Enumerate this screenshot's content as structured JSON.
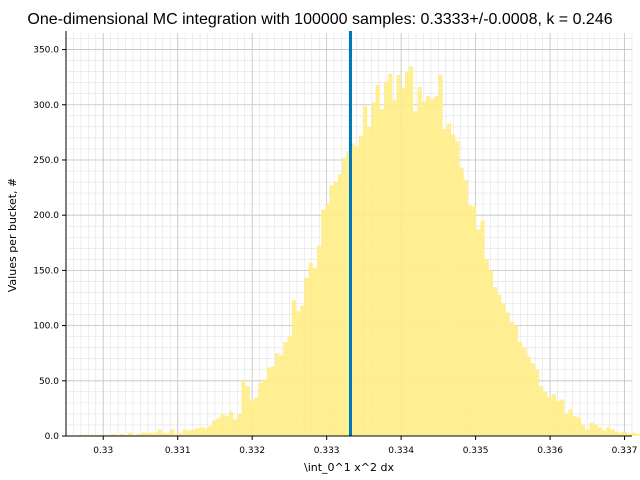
{
  "chart_data": {
    "type": "bar",
    "title": "One-dimensional MC integration with 100000 samples: 0.3333+/-0.0008, k = 0.246",
    "xlabel": "\\int_0^1 x^2 dx",
    "ylabel": "Values per bucket, #",
    "xlim": [
      0.3295,
      0.3371
    ],
    "ylim": [
      0,
      365
    ],
    "x_ticks": [
      0.33,
      0.331,
      0.332,
      0.333,
      0.334,
      0.335,
      0.336,
      0.337
    ],
    "x_tick_labels": [
      "0.33",
      "0.331",
      "0.332",
      "0.333",
      "0.334",
      "0.335",
      "0.336",
      "0.337"
    ],
    "y_ticks": [
      0,
      50,
      100,
      150,
      200,
      250,
      300,
      350
    ],
    "y_tick_labels": [
      "0.0",
      "50.0",
      "100.0",
      "150.0",
      "200.0",
      "250.0",
      "300.0",
      "350.0"
    ],
    "grid": true,
    "bar_color": "#ffee88",
    "mean_line": {
      "x": 0.33332,
      "color": "#0077bb"
    },
    "bin_start": 0.32966,
    "bin_width": 5.63e-05,
    "values": [
      1,
      1,
      0,
      1,
      1,
      1,
      1,
      1,
      2,
      1,
      2,
      1,
      3,
      1,
      2,
      3,
      3,
      3,
      3,
      6,
      3,
      3,
      6,
      2,
      3,
      6,
      5,
      6,
      7,
      8,
      7,
      9,
      14,
      16,
      20,
      18,
      22,
      15,
      20,
      50,
      45,
      32,
      35,
      48,
      51,
      62,
      63,
      75,
      73,
      85,
      90,
      123,
      113,
      118,
      143,
      157,
      152,
      172,
      205,
      210,
      227,
      230,
      237,
      252,
      258,
      265,
      262,
      272,
      299,
      280,
      302,
      318,
      296,
      321,
      328,
      304,
      327,
      315,
      330,
      335,
      294,
      316,
      303,
      308,
      305,
      308,
      327,
      278,
      283,
      273,
      267,
      243,
      232,
      209,
      208,
      187,
      195,
      160,
      150,
      135,
      128,
      120,
      112,
      103,
      100,
      85,
      80,
      72,
      66,
      60,
      45,
      40,
      35,
      38,
      32,
      33,
      20,
      24,
      18,
      17,
      10,
      6,
      12,
      10,
      8,
      5,
      8,
      6,
      4,
      3,
      4,
      2,
      3,
      2,
      2,
      1,
      1,
      1,
      1,
      1,
      1,
      0,
      1,
      1,
      1
    ]
  }
}
